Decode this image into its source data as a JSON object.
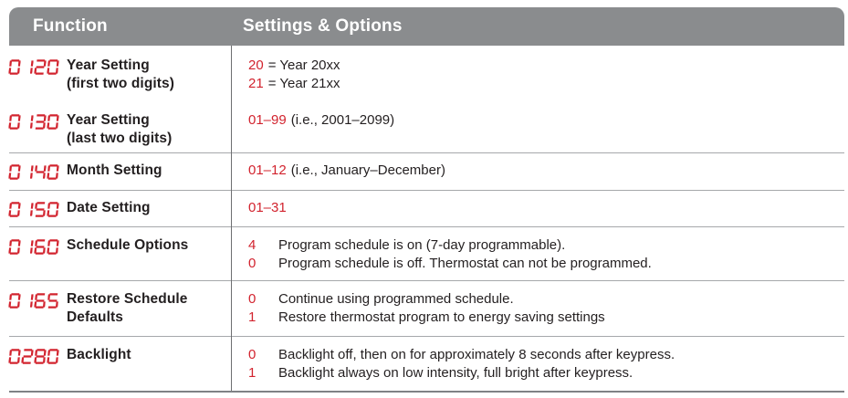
{
  "table": {
    "header": {
      "function": "Function",
      "settings": "Settings & Options"
    },
    "rows": [
      {
        "code": "0120",
        "name": "Year Setting\n(first two digits)",
        "options": [
          {
            "value": "20",
            "text": "= Year 20xx"
          },
          {
            "value": "21",
            "text": "= Year 21xx"
          }
        ]
      },
      {
        "code": "0130",
        "name": "Year Setting\n(last two digits)",
        "options": [
          {
            "value": "01–99",
            "text": "(i.e., 2001–2099)"
          }
        ]
      },
      {
        "code": "0140",
        "name": "Month Setting",
        "options": [
          {
            "value": "01–12",
            "text": "(i.e., January–December)"
          }
        ]
      },
      {
        "code": "0150",
        "name": "Date Setting",
        "options": [
          {
            "value": "01–31",
            "text": ""
          }
        ]
      },
      {
        "code": "0160",
        "name": "Schedule Options",
        "options": [
          {
            "value": "4",
            "text": "Program schedule is on (7-day programmable)."
          },
          {
            "value": "0",
            "text": "Program schedule is off. Thermostat can not be programmed."
          }
        ]
      },
      {
        "code": "0165",
        "name": "Restore Schedule\nDefaults",
        "options": [
          {
            "value": "0",
            "text": "Continue using programmed schedule."
          },
          {
            "value": "1",
            "text": "Restore thermostat program to energy saving settings"
          }
        ]
      },
      {
        "code": "0280",
        "name": "Backlight",
        "options": [
          {
            "value": "0",
            "text": "Backlight off, then on for approximately 8 seconds after keypress."
          },
          {
            "value": "1",
            "text": "Backlight always on low intensity, full bright after keypress."
          }
        ]
      }
    ],
    "colors": {
      "accent_red": "#d2232e",
      "header_gray": "#8a8c8e",
      "text_black": "#231f20"
    }
  }
}
